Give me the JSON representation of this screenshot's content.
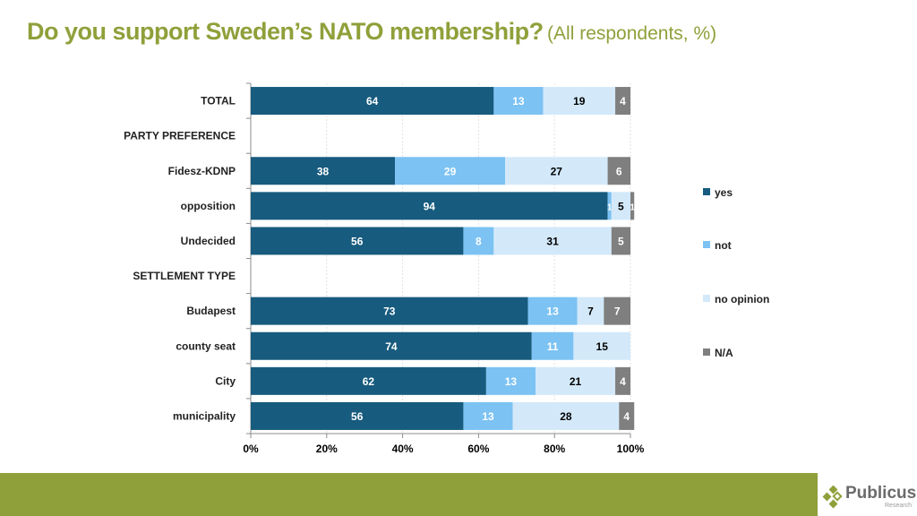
{
  "title": {
    "main": "Do you support Sweden’s NATO membership?",
    "sub": "(All respondents, %)"
  },
  "chart_data": {
    "type": "bar",
    "orientation": "horizontal",
    "stacked": true,
    "title": "Do you support Sweden’s NATO membership? (All respondents, %)",
    "xlabel": "",
    "ylabel": "",
    "xlim": [
      0,
      100
    ],
    "x_ticks": [
      "0%",
      "20%",
      "40%",
      "60%",
      "80%",
      "100%"
    ],
    "grid": true,
    "legend_position": "right",
    "categories": [
      "TOTAL",
      "PARTY PREFERENCE",
      "Fidesz-KDNP",
      "opposition",
      "Undecided",
      "SETTLEMENT TYPE",
      "Budapest",
      "county seat",
      "City",
      "municipality"
    ],
    "series": [
      {
        "name": "yes",
        "color": "#175b7e",
        "label_color": "#ffffff",
        "values": [
          64,
          null,
          38,
          94,
          56,
          null,
          73,
          74,
          62,
          56
        ]
      },
      {
        "name": "not",
        "color": "#7cc2f3",
        "label_color": "#ffffff",
        "values": [
          13,
          null,
          29,
          1,
          8,
          null,
          13,
          11,
          13,
          13
        ]
      },
      {
        "name": "no opinion",
        "color": "#d3e9fa",
        "label_color": "#000000",
        "values": [
          19,
          null,
          27,
          5,
          31,
          null,
          7,
          15,
          21,
          28
        ]
      },
      {
        "name": "N/A",
        "color": "#7f7f7f",
        "label_color": "#ffffff",
        "values": [
          4,
          null,
          6,
          1,
          5,
          null,
          7,
          0,
          4,
          4
        ]
      }
    ]
  },
  "logo": {
    "name": "Publicus",
    "sub": "Research"
  },
  "colors": {
    "accent": "#8fa03a"
  }
}
